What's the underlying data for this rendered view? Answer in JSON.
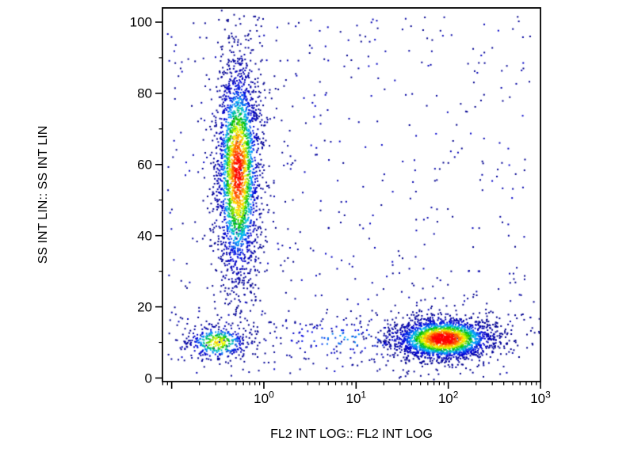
{
  "figure": {
    "background": "#ffffff",
    "frame_color": "#000000",
    "tick_color": "#000000",
    "text_color": "#000000"
  },
  "chart_data": {
    "type": "scatter",
    "title": "",
    "xlabel": "FL2 INT LOG:: FL2 INT LOG",
    "ylabel": "SS INT LIN:: SS INT LIN",
    "x_scale": "log",
    "y_scale": "linear",
    "x_range_log10": [
      -1.1,
      3.0
    ],
    "y_range": [
      -1,
      104
    ],
    "grid": "off",
    "legend": "none",
    "point_size": 2,
    "seed": 42,
    "x_ticks": [
      {
        "log10": 0,
        "base": "10",
        "exponent": "0"
      },
      {
        "log10": 1,
        "base": "10",
        "exponent": "1"
      },
      {
        "log10": 2,
        "base": "10",
        "exponent": "2"
      },
      {
        "log10": 3,
        "base": "10",
        "exponent": "3"
      }
    ],
    "x_unlabeled_decades": [
      -1
    ],
    "x_minor_decades": [
      -2,
      -1,
      0,
      1,
      2
    ],
    "y_ticks": [
      0,
      20,
      40,
      60,
      80,
      100
    ],
    "y_minor_step": 10,
    "colormap": [
      "#00008b",
      "#0000e0",
      "#00bfff",
      "#00c000",
      "#ffff00",
      "#ff8000",
      "#ff0000"
    ],
    "clusters": [
      {
        "name": "population-a-vertical-unstained",
        "kind": "gauss",
        "x_log10_mean": -0.28,
        "x_log10_sd": 0.12,
        "y_mean": 58,
        "y_sd": 16,
        "count": 2600,
        "heat": 1.0,
        "outlier_frac": 0.08
      },
      {
        "name": "population-b-bottom-right-positive",
        "kind": "gauss",
        "x_log10_mean": 1.95,
        "x_log10_sd": 0.28,
        "y_mean": 11,
        "y_sd": 3,
        "count": 2300,
        "heat": 1.05,
        "outlier_frac": 0.08
      },
      {
        "name": "population-c-bottom-left-debris",
        "kind": "gauss",
        "x_log10_mean": -0.5,
        "x_log10_sd": 0.18,
        "y_mean": 10,
        "y_sd": 2.6,
        "count": 380,
        "heat": 0.8,
        "outlier_frac": 0.1
      },
      {
        "name": "bottom-bridge-scatter",
        "kind": "gauss",
        "x_log10_mean": 0.9,
        "x_log10_sd": 0.6,
        "y_mean": 11,
        "y_sd": 3.5,
        "count": 150,
        "heat": 0.45,
        "outlier_frac": 0.1
      },
      {
        "name": "background-scatter",
        "kind": "uniform",
        "x_log10_min": -1.05,
        "x_log10_max": 2.9,
        "y_min": 1,
        "y_max": 102,
        "count": 500,
        "heat": 0.25
      }
    ]
  }
}
